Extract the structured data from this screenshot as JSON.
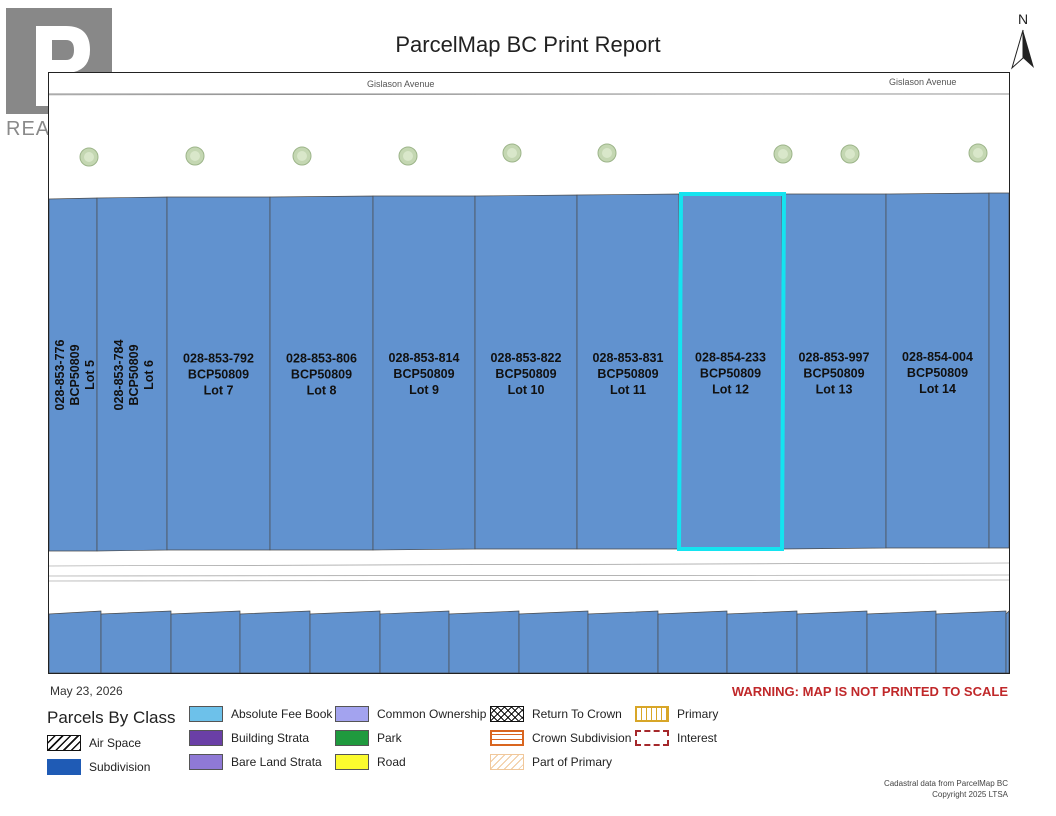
{
  "header": {
    "title": "ParcelMap BC Print Report"
  },
  "logo": {
    "text": "REALTOR",
    "mark": "®",
    "icon": "realtor-r-logo"
  },
  "north_arrow": {
    "label": "N",
    "icon": "north-arrow-icon"
  },
  "map": {
    "streets": [
      "Gislason Avenue",
      "Gislason Avenue"
    ],
    "parcel_color": "#6192cf",
    "highlight_color": "#14e4f0",
    "highlighted_parcel": "028-854-233",
    "parcels": [
      {
        "pid": "028-853-776",
        "plan": "BCP50809",
        "lot": "Lot 5",
        "rotated": true
      },
      {
        "pid": "028-853-784",
        "plan": "BCP50809",
        "lot": "Lot 6",
        "rotated": true
      },
      {
        "pid": "028-853-792",
        "plan": "BCP50809",
        "lot": "Lot 7"
      },
      {
        "pid": "028-853-806",
        "plan": "BCP50809",
        "lot": "Lot 8"
      },
      {
        "pid": "028-853-814",
        "plan": "BCP50809",
        "lot": "Lot 9"
      },
      {
        "pid": "028-853-822",
        "plan": "BCP50809",
        "lot": "Lot 10"
      },
      {
        "pid": "028-853-831",
        "plan": "BCP50809",
        "lot": "Lot 11"
      },
      {
        "pid": "028-854-233",
        "plan": "BCP50809",
        "lot": "Lot 12",
        "highlighted": true
      },
      {
        "pid": "028-853-997",
        "plan": "BCP50809",
        "lot": "Lot 13"
      },
      {
        "pid": "028-854-004",
        "plan": "BCP50809",
        "lot": "Lot 14"
      }
    ]
  },
  "footer": {
    "date": "May 23, 2026",
    "warning": "WARNING: MAP IS NOT PRINTED TO SCALE",
    "credit_line1": "Cadastral data from ParcelMap BC",
    "credit_line2": "Copyright 2025 LTSA"
  },
  "legend": {
    "title": "Parcels By Class",
    "items": [
      {
        "label": "Air Space",
        "swatch": "hatch"
      },
      {
        "label": "Subdivision",
        "swatch": "#1f5bb5"
      },
      {
        "label": "Absolute Fee Book",
        "swatch": "#6dc1ea"
      },
      {
        "label": "Building Strata",
        "swatch": "#6a3fa6"
      },
      {
        "label": "Bare Land Strata",
        "swatch": "#8f79d6"
      },
      {
        "label": "Common Ownership",
        "swatch": "#a3a3ef"
      },
      {
        "label": "Park",
        "swatch": "#1f9a3e"
      },
      {
        "label": "Road",
        "swatch": "#fbfb2e"
      },
      {
        "label": "Return To Crown",
        "swatch": "crosshatch"
      },
      {
        "label": "Crown Subdivision",
        "swatch": "orange-lines"
      },
      {
        "label": "Part of Primary",
        "swatch": "light-orange-hatch"
      },
      {
        "label": "Primary",
        "swatch": "gold-vertical"
      },
      {
        "label": "Interest",
        "swatch": "red-dashed"
      }
    ]
  }
}
